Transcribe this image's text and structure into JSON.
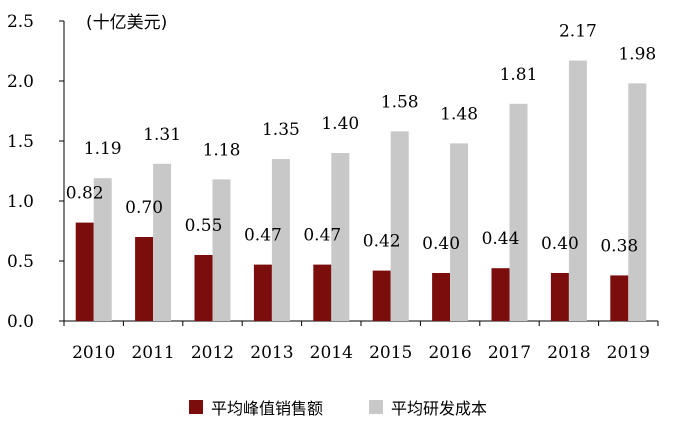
{
  "chart_data": {
    "type": "bar",
    "title": "",
    "unit_label": "(十亿美元)",
    "xlabel": "",
    "ylabel": "",
    "ylim": [
      0,
      2.5
    ],
    "yticks": [
      "0.0",
      "0.5",
      "1.0",
      "1.5",
      "2.0",
      "2.5"
    ],
    "categories": [
      "2010",
      "2011",
      "2012",
      "2013",
      "2014",
      "2015",
      "2016",
      "2017",
      "2018",
      "2019"
    ],
    "series": [
      {
        "name": "平均峰值销售额",
        "color": "#7b0d0d",
        "values": [
          0.82,
          0.7,
          0.55,
          0.47,
          0.47,
          0.42,
          0.4,
          0.44,
          0.4,
          0.38
        ],
        "labels": [
          "0.82",
          "0.70",
          "0.55",
          "0.47",
          "0.47",
          "0.42",
          "0.40",
          "0.44",
          "0.40",
          "0.38"
        ]
      },
      {
        "name": "平均研发成本",
        "color": "#c8c8c8",
        "values": [
          1.19,
          1.31,
          1.18,
          1.35,
          1.4,
          1.58,
          1.48,
          1.81,
          2.17,
          1.98
        ],
        "labels": [
          "1.19",
          "1.31",
          "1.18",
          "1.35",
          "1.40",
          "1.58",
          "1.48",
          "1.81",
          "2.17",
          "1.98"
        ]
      }
    ],
    "legend_position": "bottom",
    "grid": false
  }
}
